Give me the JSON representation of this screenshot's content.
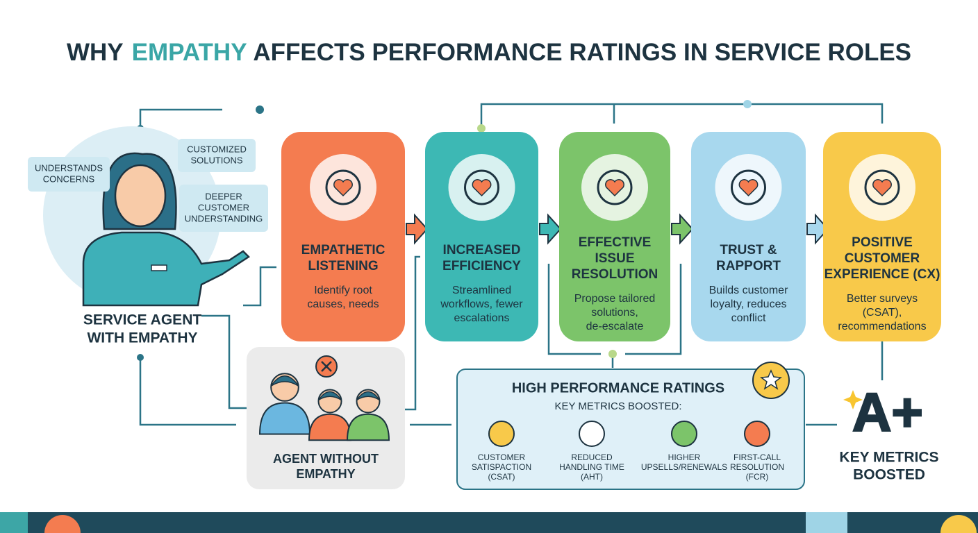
{
  "title": {
    "before": "WHY",
    "highlight": "EMPATHY",
    "after": "AFFECTS PERFORMANCE RATINGS IN SERVICE ROLES"
  },
  "agent": {
    "label": [
      "SERVICE AGENT",
      "WITH EMPATHY"
    ],
    "bubbles": [
      {
        "lines": [
          "UNDERSTANDS",
          "CONCERNS"
        ]
      },
      {
        "lines": [
          "CUSTOMIZED",
          "SOLUTIONS"
        ]
      },
      {
        "lines": [
          "DEEPER",
          "CUSTOMER",
          "UNDERSTANDING"
        ]
      }
    ]
  },
  "steps": [
    {
      "title": [
        "EMPATHETIC",
        "LISTENING"
      ],
      "text": [
        "Identify root",
        "causes, needs"
      ],
      "color": "#f47c50"
    },
    {
      "title": [
        "INCREASED",
        "EFFICIENCY"
      ],
      "text": [
        "Streamlined",
        "workflows, fewer",
        "escalations"
      ],
      "color": "#3db8b4"
    },
    {
      "title": [
        "EFFECTIVE",
        "ISSUE",
        "RESOLUTION"
      ],
      "text": [
        "Propose tailored",
        "solutions,",
        "de-escalate"
      ],
      "color": "#7cc46a"
    },
    {
      "title": [
        "TRUST &",
        "RAPPORT"
      ],
      "text": [
        "Builds customer",
        "loyalty, reduces",
        "conflict"
      ],
      "color": "#a8d8ee"
    },
    {
      "title": [
        "POSITIVE",
        "CUSTOMER",
        "EXPERIENCE (CX)"
      ],
      "text": [
        "Better surveys",
        "(CSAT),",
        "recommendations"
      ],
      "color": "#f8c94a"
    }
  ],
  "no_empathy": {
    "label": [
      "AGENT WITHOUT",
      "EMPATHY"
    ]
  },
  "metrics": {
    "title": "HIGH PERFORMANCE RATINGS",
    "subtitle": "KEY METRICS BOOSTED:",
    "items": [
      {
        "lines": [
          "CUSTOMER",
          "SATISPACTION",
          "(CSAT)"
        ]
      },
      {
        "lines": [
          "REDUCED",
          "HANDLING TIME",
          "(AHT)"
        ]
      },
      {
        "lines": [
          "HIGHER",
          "UPSELLS/RENEWALS"
        ]
      },
      {
        "lines": [
          "FIRST-CALL",
          "RESOLUTION",
          "(FCR)"
        ]
      }
    ]
  },
  "grade": {
    "mark": "A+",
    "label": [
      "KEY METRICS",
      "BOOSTED"
    ]
  }
}
